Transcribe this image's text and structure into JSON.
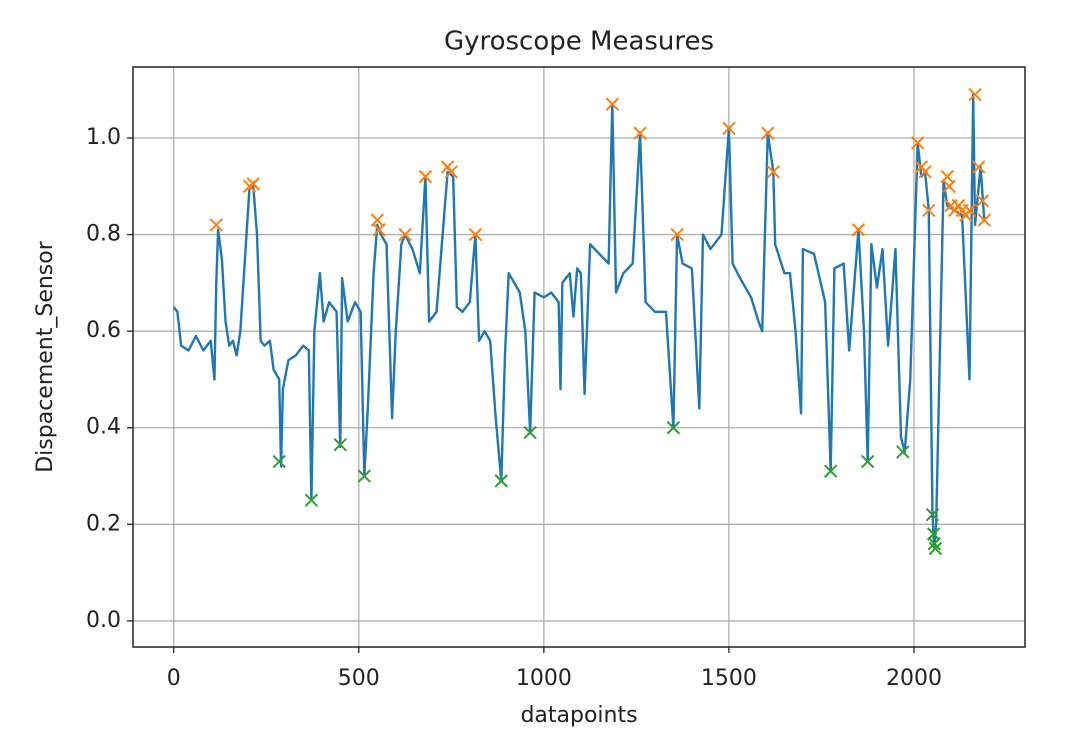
{
  "chart_data": {
    "type": "line",
    "title": "Gyroscope Measures",
    "xlabel": "datapoints",
    "ylabel": "Dispacement_Sensor",
    "xlim": [
      -110,
      2300
    ],
    "xticks": [
      0,
      500,
      1000,
      1500,
      2000
    ],
    "ylim": [
      -0.054,
      1.147
    ],
    "yticks": [
      {
        "value": 0,
        "label": "0.0"
      },
      0.2,
      0.4,
      0.6,
      0.8,
      {
        "value": 1,
        "label": "1.0"
      }
    ],
    "grid": true,
    "series": [
      {
        "color": "#1f77b4",
        "marker": "none",
        "x": [
          0,
          10,
          20,
          40,
          60,
          80,
          100,
          110,
          115,
          120,
          130,
          140,
          150,
          160,
          170,
          180,
          195,
          205,
          215,
          225,
          235,
          245,
          260,
          270,
          285,
          290,
          295,
          310,
          330,
          350,
          365,
          372,
          380,
          395,
          405,
          420,
          440,
          450,
          455,
          470,
          490,
          505,
          515,
          525,
          540,
          550,
          560,
          575,
          590,
          600,
          615,
          625,
          645,
          665,
          680,
          690,
          710,
          740,
          755,
          765,
          780,
          800,
          815,
          825,
          840,
          855,
          870,
          885,
          895,
          905,
          920,
          935,
          950,
          963,
          975,
          1000,
          1020,
          1040,
          1045,
          1050,
          1070,
          1080,
          1090,
          1100,
          1110,
          1125,
          1150,
          1175,
          1185,
          1195,
          1215,
          1240,
          1260,
          1275,
          1300,
          1330,
          1350,
          1360,
          1375,
          1400,
          1420,
          1430,
          1450,
          1480,
          1500,
          1510,
          1530,
          1560,
          1580,
          1590,
          1605,
          1620,
          1625,
          1650,
          1665,
          1680,
          1695,
          1700,
          1730,
          1760,
          1775,
          1785,
          1810,
          1825,
          1850,
          1865,
          1875,
          1885,
          1900,
          1915,
          1930,
          1950,
          1965,
          1975,
          1990,
          2010,
          2020,
          2030,
          2040,
          2050,
          2055,
          2060,
          2080,
          2090,
          2110,
          2130,
          2150,
          2160,
          2165,
          2180,
          2190
        ],
        "values": [
          0.65,
          0.64,
          0.57,
          0.56,
          0.59,
          0.56,
          0.58,
          0.5,
          0.7,
          0.81,
          0.75,
          0.62,
          0.57,
          0.58,
          0.55,
          0.6,
          0.78,
          0.9,
          0.9,
          0.8,
          0.58,
          0.57,
          0.58,
          0.52,
          0.5,
          0.32,
          0.48,
          0.54,
          0.55,
          0.57,
          0.56,
          0.25,
          0.6,
          0.72,
          0.62,
          0.66,
          0.64,
          0.36,
          0.71,
          0.62,
          0.66,
          0.64,
          0.3,
          0.45,
          0.72,
          0.82,
          0.8,
          0.78,
          0.42,
          0.6,
          0.78,
          0.8,
          0.77,
          0.72,
          0.92,
          0.62,
          0.64,
          0.93,
          0.92,
          0.65,
          0.64,
          0.66,
          0.8,
          0.58,
          0.6,
          0.58,
          0.42,
          0.29,
          0.55,
          0.72,
          0.7,
          0.68,
          0.6,
          0.39,
          0.68,
          0.67,
          0.68,
          0.66,
          0.48,
          0.7,
          0.72,
          0.63,
          0.73,
          0.72,
          0.47,
          0.78,
          0.76,
          0.74,
          1.07,
          0.68,
          0.72,
          0.74,
          1.01,
          0.66,
          0.64,
          0.64,
          0.4,
          0.8,
          0.74,
          0.73,
          0.44,
          0.8,
          0.77,
          0.8,
          1.02,
          0.74,
          0.71,
          0.67,
          0.62,
          0.6,
          1.01,
          0.93,
          0.78,
          0.72,
          0.72,
          0.6,
          0.43,
          0.77,
          0.76,
          0.66,
          0.31,
          0.73,
          0.74,
          0.56,
          0.81,
          0.6,
          0.33,
          0.78,
          0.69,
          0.77,
          0.57,
          0.77,
          0.38,
          0.35,
          0.5,
          0.99,
          0.92,
          0.93,
          0.85,
          0.22,
          0.15,
          0.2,
          0.91,
          0.86,
          0.85,
          0.84,
          0.5,
          1.09,
          0.82,
          0.94,
          0.83
        ]
      },
      {
        "color": "#ff7f0e",
        "marker": "x",
        "x": [
          115,
          205,
          215,
          550,
          555,
          625,
          680,
          740,
          750,
          815,
          1185,
          1260,
          1360,
          1500,
          1605,
          1620,
          1850,
          2010,
          2020,
          2030,
          2040,
          2090,
          2095,
          2100,
          2110,
          2120,
          2130,
          2140,
          2150,
          2165,
          2175,
          2185,
          2190
        ],
        "values": [
          0.82,
          0.9,
          0.905,
          0.83,
          0.81,
          0.8,
          0.92,
          0.94,
          0.93,
          0.8,
          1.07,
          1.01,
          0.8,
          1.02,
          1.01,
          0.93,
          0.81,
          0.99,
          0.94,
          0.93,
          0.85,
          0.92,
          0.9,
          0.86,
          0.85,
          0.86,
          0.85,
          0.84,
          0.85,
          1.09,
          0.94,
          0.87,
          0.83
        ]
      },
      {
        "color": "#2ca02c",
        "marker": "x",
        "x": [
          285,
          372,
          450,
          515,
          885,
          963,
          1350,
          1775,
          1875,
          1970,
          2050,
          2053,
          2055,
          2058
        ],
        "values": [
          0.33,
          0.25,
          0.365,
          0.3,
          0.29,
          0.39,
          0.4,
          0.31,
          0.33,
          0.35,
          0.22,
          0.18,
          0.16,
          0.15
        ]
      }
    ]
  }
}
